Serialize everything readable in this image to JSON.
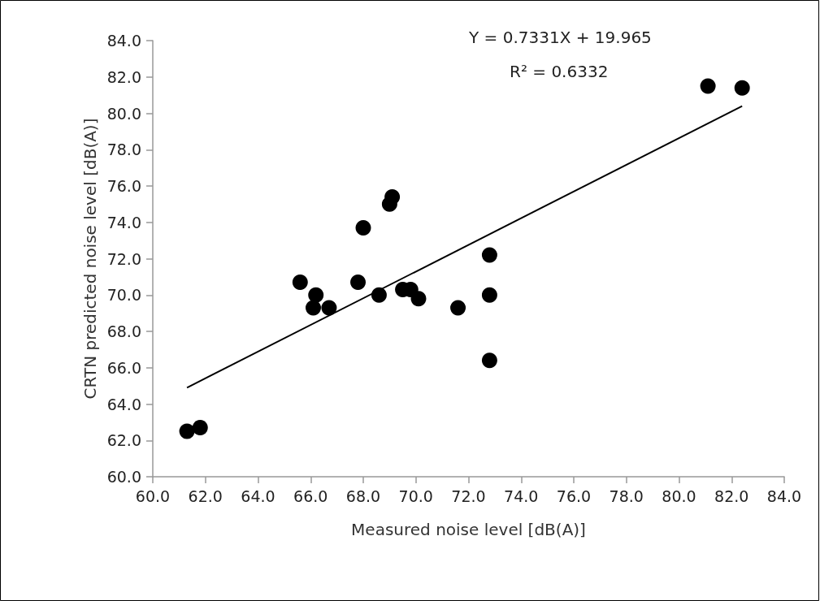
{
  "chart_data": {
    "type": "scatter",
    "xlabel": "Measured noise level [dB(A)]",
    "ylabel": "CRTN predicted noise level [dB(A)]",
    "annotations": [
      "Y = 0.7331X + 19.965",
      "R² = 0.6332"
    ],
    "xlim": [
      60,
      84
    ],
    "ylim": [
      60,
      84
    ],
    "xticks": [
      {
        "value": 60,
        "label": "60.0"
      },
      {
        "value": 62,
        "label": "62.0"
      },
      {
        "value": 64,
        "label": "64.0"
      },
      {
        "value": 66,
        "label": "66.0"
      },
      {
        "value": 68,
        "label": "68.0"
      },
      {
        "value": 70,
        "label": "70.0"
      },
      {
        "value": 72,
        "label": "72.0"
      },
      {
        "value": 74,
        "label": "74.0"
      },
      {
        "value": 76,
        "label": "76.0"
      },
      {
        "value": 78,
        "label": "78.0"
      },
      {
        "value": 80,
        "label": "80.0"
      },
      {
        "value": 82,
        "label": "82.0"
      },
      {
        "value": 84,
        "label": "84.0"
      }
    ],
    "yticks": [
      {
        "value": 60,
        "label": "60.0"
      },
      {
        "value": 62,
        "label": "62.0"
      },
      {
        "value": 64,
        "label": "64.0"
      },
      {
        "value": 66,
        "label": "66.0"
      },
      {
        "value": 68,
        "label": "68.0"
      },
      {
        "value": 70,
        "label": "70.0"
      },
      {
        "value": 72,
        "label": "72.0"
      },
      {
        "value": 74,
        "label": "74.0"
      },
      {
        "value": 76,
        "label": "76.0"
      },
      {
        "value": 78,
        "label": "78.0"
      },
      {
        "value": 80,
        "label": "80.0"
      },
      {
        "value": 82,
        "label": "82.0"
      },
      {
        "value": 84,
        "label": "84.0"
      }
    ],
    "grid": false,
    "marker": "circle",
    "series": [
      {
        "color": "#000000",
        "x": [
          61.3,
          61.8,
          65.6,
          66.2,
          66.1,
          66.7,
          67.8,
          68.0,
          68.6,
          69.0,
          69.1,
          69.5,
          69.8,
          70.1,
          71.6,
          72.8,
          72.8,
          72.8,
          81.1,
          82.4
        ],
        "values": [
          62.5,
          62.7,
          70.7,
          70.0,
          69.3,
          69.3,
          70.7,
          73.7,
          70.0,
          75.0,
          75.4,
          70.3,
          70.3,
          69.8,
          69.3,
          72.2,
          70.0,
          66.4,
          81.5,
          81.4
        ]
      },
      {
        "type": "line",
        "color": "#000000",
        "marker": "none",
        "line_style": "solid",
        "x": [
          61.3,
          82.4
        ],
        "values": [
          64.9,
          80.4
        ]
      }
    ]
  }
}
